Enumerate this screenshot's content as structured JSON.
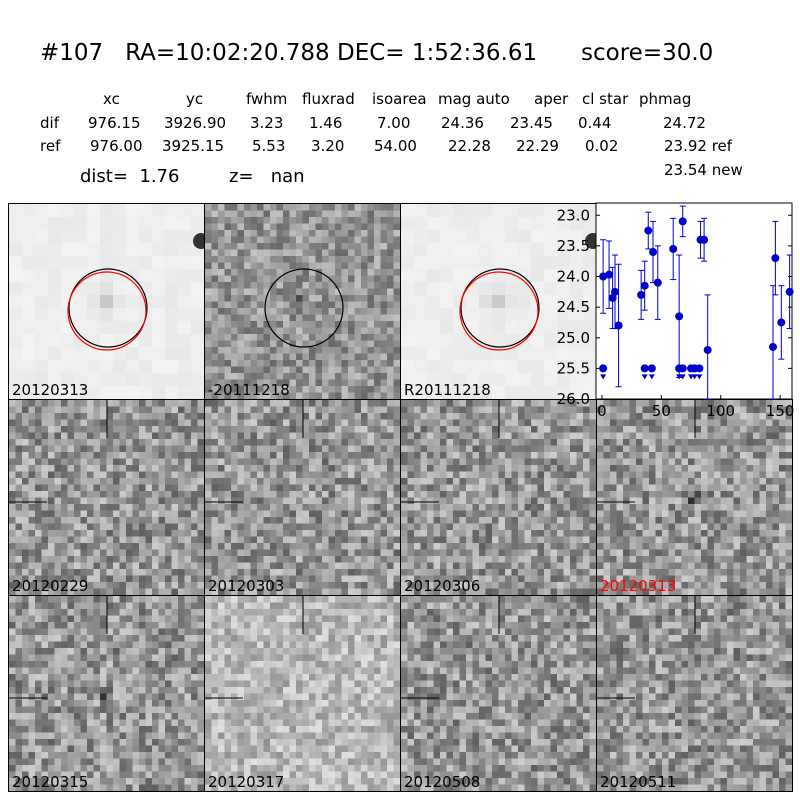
{
  "header": {
    "id": "#107",
    "ra": "RA=10:02:20.788",
    "dec": "DEC= 1:52:36.61",
    "score": "score=30.0"
  },
  "table": {
    "columns": [
      "xc",
      "yc",
      "fwhm",
      "fluxrad",
      "isoarea",
      "mag auto",
      "aper",
      "cl star",
      "phmag"
    ],
    "rows": [
      {
        "label": "dif",
        "values": [
          "976.15",
          "3926.90",
          "3.23",
          "1.46",
          "7.00",
          "24.36",
          "23.45",
          "0.44"
        ],
        "phmag": "24.72"
      },
      {
        "label": "ref",
        "values": [
          "976.00",
          "3925.15",
          "5.53",
          "3.20",
          "54.00",
          "22.28",
          "22.29",
          "0.02"
        ],
        "phmag": "23.92 ref"
      }
    ],
    "phmag_new": "23.54 new",
    "dist": "dist=  1.76",
    "z": "z=   nan"
  },
  "colors": {
    "accent_red": "#ff0000",
    "error_blue": "#0000cc"
  },
  "panels": [
    {
      "label": "20120313",
      "kind": "new",
      "circles": true,
      "red_circle": true,
      "label_color": "#000000"
    },
    {
      "label": "-20111218",
      "kind": "diff",
      "circles": true,
      "red_circle": false,
      "label_color": "#000000"
    },
    {
      "label": "R20111218",
      "kind": "ref",
      "circles": true,
      "red_circle": true,
      "label_color": "#000000"
    },
    {
      "label": "20120229",
      "kind": "epoch",
      "label_color": "#000000"
    },
    {
      "label": "20120303",
      "kind": "epoch",
      "label_color": "#000000"
    },
    {
      "label": "20120306",
      "kind": "epoch",
      "label_color": "#000000"
    },
    {
      "label": "20120313",
      "kind": "epoch",
      "label_color": "#ff0000"
    },
    {
      "label": "20120315",
      "kind": "epoch",
      "label_color": "#000000"
    },
    {
      "label": "20120317",
      "kind": "epoch",
      "label_color": "#000000"
    },
    {
      "label": "20120508",
      "kind": "epoch",
      "label_color": "#000000"
    },
    {
      "label": "20120511",
      "kind": "epoch",
      "label_color": "#000000"
    }
  ],
  "chart_data": {
    "type": "scatter",
    "xlim": [
      -5,
      160
    ],
    "ylim": [
      26.0,
      22.8
    ],
    "x_ticks": [
      "0",
      "50",
      "100",
      "150"
    ],
    "y_ticks": [
      "23.0",
      "23.5",
      "24.0",
      "24.5",
      "25.0",
      "25.5",
      "26.0"
    ],
    "points": [
      {
        "x": 1,
        "y": 24.0,
        "err": 0.6
      },
      {
        "x": 6,
        "y": 23.97,
        "err": 0.55
      },
      {
        "x": 9,
        "y": 24.35,
        "err": 0.5
      },
      {
        "x": 11,
        "y": 24.25,
        "err": 0.6
      },
      {
        "x": 14,
        "y": 24.8,
        "err": 1.0
      },
      {
        "x": 33,
        "y": 24.3,
        "err": 0.4
      },
      {
        "x": 36,
        "y": 24.15,
        "err": 0.4
      },
      {
        "x": 39,
        "y": 23.25,
        "err": 0.3
      },
      {
        "x": 43,
        "y": 23.6,
        "err": 0.5
      },
      {
        "x": 47,
        "y": 24.1,
        "err": 0.6
      },
      {
        "x": 60,
        "y": 23.55,
        "err": 0.5
      },
      {
        "x": 65,
        "y": 24.65,
        "err": 1.0
      },
      {
        "x": 68,
        "y": 23.1,
        "err": 0.25
      },
      {
        "x": 83,
        "y": 23.4,
        "err": 0.3
      },
      {
        "x": 86,
        "y": 23.4,
        "err": 0.35
      },
      {
        "x": 89,
        "y": 25.2,
        "err": 0.9
      },
      {
        "x": 144,
        "y": 25.15,
        "err": 1.0
      },
      {
        "x": 146,
        "y": 23.7,
        "err": 0.6
      },
      {
        "x": 151,
        "y": 24.75,
        "err": 0.6
      },
      {
        "x": 158,
        "y": 24.25,
        "err": 0.6
      }
    ],
    "upper_limits": [
      {
        "x": 1,
        "y": 25.5
      },
      {
        "x": 36,
        "y": 25.5
      },
      {
        "x": 42,
        "y": 25.5
      },
      {
        "x": 65,
        "y": 25.5
      },
      {
        "x": 68,
        "y": 25.5
      },
      {
        "x": 75,
        "y": 25.5
      },
      {
        "x": 78,
        "y": 25.5
      },
      {
        "x": 82,
        "y": 25.5
      }
    ]
  }
}
